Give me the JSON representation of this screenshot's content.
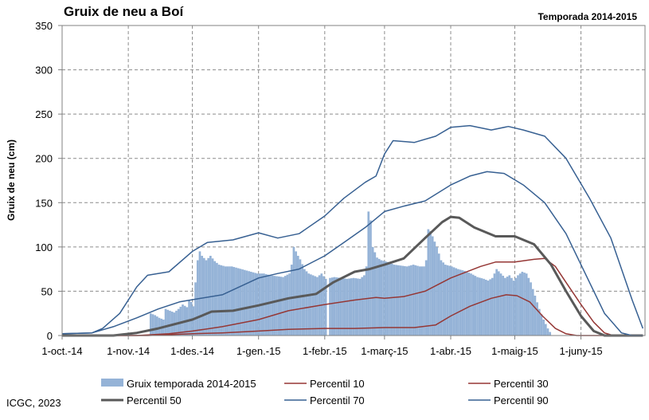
{
  "chart_data": {
    "type": "area",
    "title": "Gruix de neu a Boí",
    "subtitle": "Temporada 2014-2015",
    "ylabel": "Gruix de neu (cm)",
    "xlabel": "",
    "credit": "ICGC, 2023",
    "ylim": [
      0,
      350
    ],
    "yticks": [
      "0",
      "50",
      "100",
      "150",
      "200",
      "250",
      "300",
      "350"
    ],
    "xlim": [
      "2014-10-01",
      "2015-06-30"
    ],
    "xticks": [
      {
        "date": "2014-10-01",
        "label": "1-oct.-14"
      },
      {
        "date": "2014-11-01",
        "label": "1-nov.-14"
      },
      {
        "date": "2014-12-01",
        "label": "1-des.-14"
      },
      {
        "date": "2015-01-01",
        "label": "1-gen.-15"
      },
      {
        "date": "2015-02-01",
        "label": "1-febr.-15"
      },
      {
        "date": "2015-03-01",
        "label": "1-març-15"
      },
      {
        "date": "2015-04-01",
        "label": "1-abr.-15"
      },
      {
        "date": "2015-05-01",
        "label": "1-maig-15"
      },
      {
        "date": "2015-06-01",
        "label": "1-juny-15"
      }
    ],
    "grid": true,
    "legend_position": "bottom",
    "series": [
      {
        "name": "Gruix temporada 2014-2015",
        "kind": "bar",
        "color": "#95b3d7",
        "points": [
          [
            "2014-11-10",
            0
          ],
          [
            "2014-11-11",
            25
          ],
          [
            "2014-11-13",
            23
          ],
          [
            "2014-11-15",
            20
          ],
          [
            "2014-11-17",
            18
          ],
          [
            "2014-11-18",
            30
          ],
          [
            "2014-11-20",
            28
          ],
          [
            "2014-11-22",
            26
          ],
          [
            "2014-11-24",
            30
          ],
          [
            "2014-11-26",
            35
          ],
          [
            "2014-11-28",
            32
          ],
          [
            "2014-11-29",
            40
          ],
          [
            "2014-11-30",
            38
          ],
          [
            "2014-12-01",
            33
          ],
          [
            "2014-12-02",
            60
          ],
          [
            "2014-12-03",
            85
          ],
          [
            "2014-12-04",
            95
          ],
          [
            "2014-12-05",
            90
          ],
          [
            "2014-12-07",
            85
          ],
          [
            "2014-12-09",
            90
          ],
          [
            "2014-12-11",
            84
          ],
          [
            "2014-12-13",
            80
          ],
          [
            "2014-12-16",
            78
          ],
          [
            "2014-12-19",
            78
          ],
          [
            "2014-12-22",
            76
          ],
          [
            "2014-12-25",
            74
          ],
          [
            "2014-12-28",
            72
          ],
          [
            "2014-12-31",
            70
          ],
          [
            "2015-01-03",
            70
          ],
          [
            "2015-01-06",
            68
          ],
          [
            "2015-01-09",
            67
          ],
          [
            "2015-01-12",
            66
          ],
          [
            "2015-01-15",
            70
          ],
          [
            "2015-01-16",
            80
          ],
          [
            "2015-01-17",
            100
          ],
          [
            "2015-01-18",
            95
          ],
          [
            "2015-01-19",
            90
          ],
          [
            "2015-01-20",
            86
          ],
          [
            "2015-01-22",
            75
          ],
          [
            "2015-01-24",
            70
          ],
          [
            "2015-01-26",
            68
          ],
          [
            "2015-01-28",
            66
          ],
          [
            "2015-01-30",
            70
          ],
          [
            "2015-02-01",
            64
          ],
          [
            "2015-02-02",
            0
          ],
          [
            "2015-02-03",
            65
          ],
          [
            "2015-02-05",
            66
          ],
          [
            "2015-02-08",
            65
          ],
          [
            "2015-02-11",
            64
          ],
          [
            "2015-02-14",
            65
          ],
          [
            "2015-02-17",
            64
          ],
          [
            "2015-02-19",
            68
          ],
          [
            "2015-02-20",
            78
          ],
          [
            "2015-02-21",
            140
          ],
          [
            "2015-02-22",
            130
          ],
          [
            "2015-02-23",
            100
          ],
          [
            "2015-02-25",
            88
          ],
          [
            "2015-02-27",
            85
          ],
          [
            "2015-03-02",
            83
          ],
          [
            "2015-03-05",
            80
          ],
          [
            "2015-03-08",
            79
          ],
          [
            "2015-03-11",
            78
          ],
          [
            "2015-03-14",
            80
          ],
          [
            "2015-03-17",
            78
          ],
          [
            "2015-03-19",
            78
          ],
          [
            "2015-03-20",
            85
          ],
          [
            "2015-03-21",
            120
          ],
          [
            "2015-03-22",
            118
          ],
          [
            "2015-03-23",
            112
          ],
          [
            "2015-03-25",
            100
          ],
          [
            "2015-03-27",
            85
          ],
          [
            "2015-03-29",
            80
          ],
          [
            "2015-04-01",
            78
          ],
          [
            "2015-04-04",
            75
          ],
          [
            "2015-04-07",
            73
          ],
          [
            "2015-04-10",
            70
          ],
          [
            "2015-04-13",
            66
          ],
          [
            "2015-04-16",
            64
          ],
          [
            "2015-04-18",
            62
          ],
          [
            "2015-04-20",
            65
          ],
          [
            "2015-04-22",
            75
          ],
          [
            "2015-04-24",
            70
          ],
          [
            "2015-04-26",
            65
          ],
          [
            "2015-04-28",
            68
          ],
          [
            "2015-04-30",
            62
          ],
          [
            "2015-05-02",
            68
          ],
          [
            "2015-05-04",
            72
          ],
          [
            "2015-05-06",
            70
          ],
          [
            "2015-05-08",
            60
          ],
          [
            "2015-05-10",
            45
          ],
          [
            "2015-05-12",
            30
          ],
          [
            "2015-05-14",
            18
          ],
          [
            "2015-05-16",
            8
          ],
          [
            "2015-05-18",
            0
          ]
        ]
      },
      {
        "name": "Percentil 10",
        "kind": "line",
        "color": "#953735",
        "width": 1.5,
        "points": [
          [
            "2014-10-01",
            0
          ],
          [
            "2014-11-10",
            0
          ],
          [
            "2014-11-20",
            1
          ],
          [
            "2014-12-01",
            2
          ],
          [
            "2014-12-15",
            3
          ],
          [
            "2015-01-01",
            5
          ],
          [
            "2015-01-15",
            7
          ],
          [
            "2015-02-01",
            8
          ],
          [
            "2015-02-15",
            8
          ],
          [
            "2015-03-01",
            9
          ],
          [
            "2015-03-15",
            9
          ],
          [
            "2015-03-25",
            12
          ],
          [
            "2015-04-01",
            22
          ],
          [
            "2015-04-10",
            33
          ],
          [
            "2015-04-20",
            42
          ],
          [
            "2015-04-27",
            46
          ],
          [
            "2015-05-02",
            45
          ],
          [
            "2015-05-08",
            38
          ],
          [
            "2015-05-14",
            22
          ],
          [
            "2015-05-20",
            8
          ],
          [
            "2015-05-25",
            2
          ],
          [
            "2015-05-30",
            0
          ],
          [
            "2015-06-30",
            0
          ]
        ]
      },
      {
        "name": "Percentil 30",
        "kind": "line",
        "color": "#953735",
        "width": 1.5,
        "points": [
          [
            "2014-10-01",
            0
          ],
          [
            "2014-11-05",
            0
          ],
          [
            "2014-11-20",
            2
          ],
          [
            "2014-12-01",
            5
          ],
          [
            "2014-12-15",
            10
          ],
          [
            "2015-01-01",
            18
          ],
          [
            "2015-01-15",
            28
          ],
          [
            "2015-02-01",
            35
          ],
          [
            "2015-02-15",
            40
          ],
          [
            "2015-02-25",
            43
          ],
          [
            "2015-03-01",
            42
          ],
          [
            "2015-03-10",
            44
          ],
          [
            "2015-03-20",
            50
          ],
          [
            "2015-04-01",
            65
          ],
          [
            "2015-04-15",
            78
          ],
          [
            "2015-04-22",
            83
          ],
          [
            "2015-05-01",
            83
          ],
          [
            "2015-05-10",
            86
          ],
          [
            "2015-05-15",
            87
          ],
          [
            "2015-05-20",
            78
          ],
          [
            "2015-05-25",
            60
          ],
          [
            "2015-06-01",
            35
          ],
          [
            "2015-06-07",
            15
          ],
          [
            "2015-06-12",
            3
          ],
          [
            "2015-06-16",
            0
          ],
          [
            "2015-06-30",
            0
          ]
        ]
      },
      {
        "name": "Percentil 50",
        "kind": "line",
        "color": "#595959",
        "width": 3,
        "points": [
          [
            "2014-10-01",
            0
          ],
          [
            "2014-10-25",
            0
          ],
          [
            "2014-11-05",
            3
          ],
          [
            "2014-11-15",
            8
          ],
          [
            "2014-12-01",
            18
          ],
          [
            "2014-12-10",
            27
          ],
          [
            "2014-12-20",
            28
          ],
          [
            "2015-01-01",
            34
          ],
          [
            "2015-01-15",
            42
          ],
          [
            "2015-01-28",
            47
          ],
          [
            "2015-02-05",
            60
          ],
          [
            "2015-02-15",
            72
          ],
          [
            "2015-02-22",
            75
          ],
          [
            "2015-03-01",
            80
          ],
          [
            "2015-03-10",
            87
          ],
          [
            "2015-03-20",
            110
          ],
          [
            "2015-03-28",
            128
          ],
          [
            "2015-04-01",
            134
          ],
          [
            "2015-04-05",
            133
          ],
          [
            "2015-04-12",
            122
          ],
          [
            "2015-04-22",
            112
          ],
          [
            "2015-05-01",
            112
          ],
          [
            "2015-05-10",
            103
          ],
          [
            "2015-05-18",
            80
          ],
          [
            "2015-05-25",
            50
          ],
          [
            "2015-06-01",
            22
          ],
          [
            "2015-06-07",
            5
          ],
          [
            "2015-06-12",
            0
          ],
          [
            "2015-06-30",
            0
          ]
        ]
      },
      {
        "name": "Percentil 70",
        "kind": "line",
        "color": "#376092",
        "width": 1.5,
        "points": [
          [
            "2014-10-01",
            2
          ],
          [
            "2014-10-15",
            3
          ],
          [
            "2014-10-25",
            10
          ],
          [
            "2014-11-05",
            20
          ],
          [
            "2014-11-15",
            30
          ],
          [
            "2014-11-25",
            38
          ],
          [
            "2014-12-05",
            42
          ],
          [
            "2014-12-15",
            46
          ],
          [
            "2015-01-01",
            65
          ],
          [
            "2015-01-10",
            70
          ],
          [
            "2015-01-20",
            75
          ],
          [
            "2015-02-01",
            90
          ],
          [
            "2015-02-10",
            105
          ],
          [
            "2015-02-20",
            122
          ],
          [
            "2015-03-01",
            140
          ],
          [
            "2015-03-10",
            146
          ],
          [
            "2015-03-20",
            152
          ],
          [
            "2015-04-01",
            170
          ],
          [
            "2015-04-10",
            180
          ],
          [
            "2015-04-18",
            185
          ],
          [
            "2015-04-26",
            183
          ],
          [
            "2015-05-05",
            170
          ],
          [
            "2015-05-15",
            150
          ],
          [
            "2015-05-25",
            115
          ],
          [
            "2015-06-05",
            60
          ],
          [
            "2015-06-12",
            25
          ],
          [
            "2015-06-20",
            3
          ],
          [
            "2015-06-25",
            0
          ],
          [
            "2015-06-30",
            0
          ]
        ]
      },
      {
        "name": "Percentil 90",
        "kind": "line",
        "color": "#376092",
        "width": 1.5,
        "points": [
          [
            "2014-10-01",
            2
          ],
          [
            "2014-10-15",
            3
          ],
          [
            "2014-10-20",
            8
          ],
          [
            "2014-10-28",
            25
          ],
          [
            "2014-11-05",
            55
          ],
          [
            "2014-11-10",
            68
          ],
          [
            "2014-11-20",
            72
          ],
          [
            "2014-12-01",
            95
          ],
          [
            "2014-12-08",
            105
          ],
          [
            "2014-12-20",
            108
          ],
          [
            "2015-01-01",
            116
          ],
          [
            "2015-01-10",
            110
          ],
          [
            "2015-01-20",
            115
          ],
          [
            "2015-02-01",
            135
          ],
          [
            "2015-02-10",
            155
          ],
          [
            "2015-02-20",
            173
          ],
          [
            "2015-02-25",
            180
          ],
          [
            "2015-03-01",
            205
          ],
          [
            "2015-03-05",
            220
          ],
          [
            "2015-03-15",
            218
          ],
          [
            "2015-03-25",
            225
          ],
          [
            "2015-04-01",
            235
          ],
          [
            "2015-04-10",
            237
          ],
          [
            "2015-04-20",
            232
          ],
          [
            "2015-04-28",
            236
          ],
          [
            "2015-05-05",
            232
          ],
          [
            "2015-05-15",
            225
          ],
          [
            "2015-05-25",
            200
          ],
          [
            "2015-06-05",
            155
          ],
          [
            "2015-06-15",
            110
          ],
          [
            "2015-06-25",
            40
          ],
          [
            "2015-06-30",
            8
          ]
        ]
      }
    ]
  }
}
